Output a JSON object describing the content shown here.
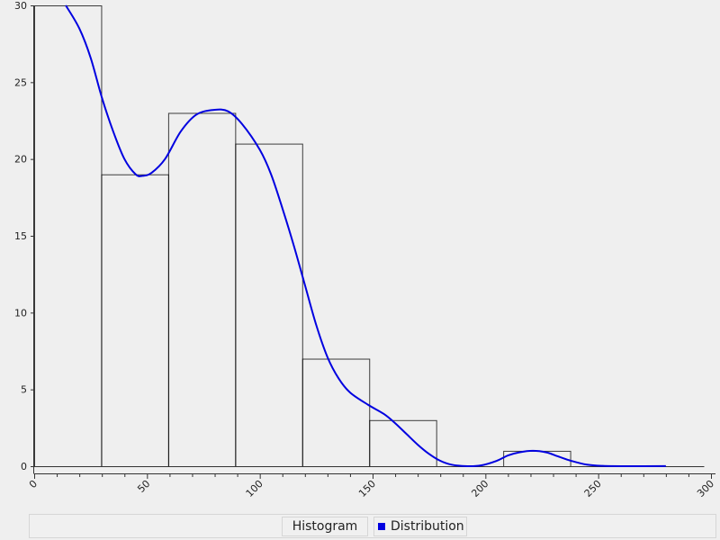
{
  "chart_data": {
    "type": "bar",
    "xlim": [
      0,
      300
    ],
    "ylim": [
      0,
      30
    ],
    "x_ticks": [
      "0",
      "50",
      "100",
      "150",
      "200",
      "250",
      "300"
    ],
    "y_ticks": [
      "0",
      "5",
      "10",
      "15",
      "20",
      "25",
      "30"
    ],
    "grid": false,
    "legend_position": "bottom",
    "series": [
      {
        "name": "Histogram",
        "type": "bar",
        "bins": [
          {
            "x0": 0,
            "x1": 29.7,
            "value": 30
          },
          {
            "x0": 29.7,
            "x1": 59.4,
            "value": 19
          },
          {
            "x0": 59.4,
            "x1": 89.1,
            "value": 23
          },
          {
            "x0": 89.1,
            "x1": 118.8,
            "value": 21
          },
          {
            "x0": 118.8,
            "x1": 148.5,
            "value": 7
          },
          {
            "x0": 148.5,
            "x1": 178.2,
            "value": 3
          },
          {
            "x0": 178.2,
            "x1": 207.9,
            "value": 0
          },
          {
            "x0": 207.9,
            "x1": 237.6,
            "value": 1
          },
          {
            "x0": 237.6,
            "x1": 267.3,
            "value": 0
          },
          {
            "x0": 267.3,
            "x1": 297,
            "value": 0
          }
        ],
        "color": "#000000"
      },
      {
        "name": "Distribution",
        "type": "line",
        "color": "#0000e0",
        "points": [
          [
            14,
            30.0
          ],
          [
            20,
            28.5
          ],
          [
            25,
            26.6
          ],
          [
            30,
            24.0
          ],
          [
            35,
            21.8
          ],
          [
            40,
            20.0
          ],
          [
            45,
            19.0
          ],
          [
            48,
            18.9
          ],
          [
            52,
            19.1
          ],
          [
            58,
            20.0
          ],
          [
            65,
            21.8
          ],
          [
            72,
            22.9
          ],
          [
            80,
            23.2
          ],
          [
            86,
            23.1
          ],
          [
            92,
            22.3
          ],
          [
            100,
            20.6
          ],
          [
            105,
            19.0
          ],
          [
            110,
            16.8
          ],
          [
            115,
            14.4
          ],
          [
            120,
            11.8
          ],
          [
            125,
            9.2
          ],
          [
            130,
            7.1
          ],
          [
            135,
            5.7
          ],
          [
            140,
            4.8
          ],
          [
            148,
            4.0
          ],
          [
            155,
            3.4
          ],
          [
            160,
            2.8
          ],
          [
            165,
            2.1
          ],
          [
            170,
            1.4
          ],
          [
            175,
            0.8
          ],
          [
            180,
            0.35
          ],
          [
            185,
            0.1
          ],
          [
            192,
            0.0
          ],
          [
            198,
            0.05
          ],
          [
            205,
            0.35
          ],
          [
            210,
            0.7
          ],
          [
            215,
            0.9
          ],
          [
            221,
            1.0
          ],
          [
            227,
            0.9
          ],
          [
            232,
            0.65
          ],
          [
            238,
            0.35
          ],
          [
            245,
            0.1
          ],
          [
            252,
            0.02
          ],
          [
            262,
            0.0
          ],
          [
            280,
            0.01
          ]
        ]
      }
    ]
  },
  "legend": {
    "histogram_label": "Histogram",
    "distribution_label": "Distribution",
    "distribution_color": "#0000e0"
  }
}
